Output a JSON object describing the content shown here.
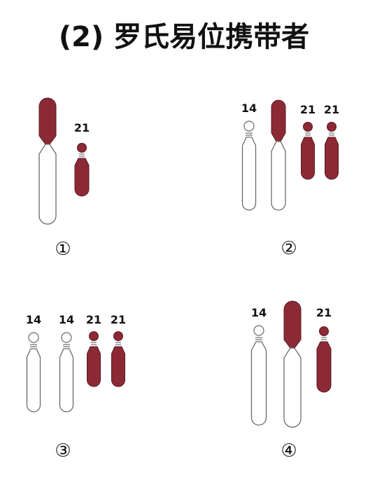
{
  "title": "(2) 罗氏易位携带者",
  "colors": {
    "chr14": "#ffffff",
    "chr14_outline": "#6a6a6a",
    "chr21": "#8b2a35",
    "chr21_outline": "#5a1a22",
    "text": "#111111"
  },
  "panels": [
    {
      "label": "①",
      "chromosomes": [
        {
          "type": "translocation-14-21",
          "label": ""
        },
        {
          "type": "chr21",
          "label": "21"
        }
      ]
    },
    {
      "label": "②",
      "chromosomes": [
        {
          "type": "chr14",
          "label": "14"
        },
        {
          "type": "translocation-14-21",
          "label": ""
        },
        {
          "type": "chr21",
          "label": "21"
        },
        {
          "type": "chr21",
          "label": "21"
        }
      ]
    },
    {
      "label": "③",
      "chromosomes": [
        {
          "type": "chr14",
          "label": "14"
        },
        {
          "type": "chr14",
          "label": "14"
        },
        {
          "type": "chr21",
          "label": "21"
        },
        {
          "type": "chr21",
          "label": "21"
        }
      ]
    },
    {
      "label": "④",
      "chromosomes": [
        {
          "type": "chr14",
          "label": "14"
        },
        {
          "type": "translocation-14-21",
          "label": ""
        },
        {
          "type": "chr21",
          "label": "21"
        }
      ]
    }
  ]
}
